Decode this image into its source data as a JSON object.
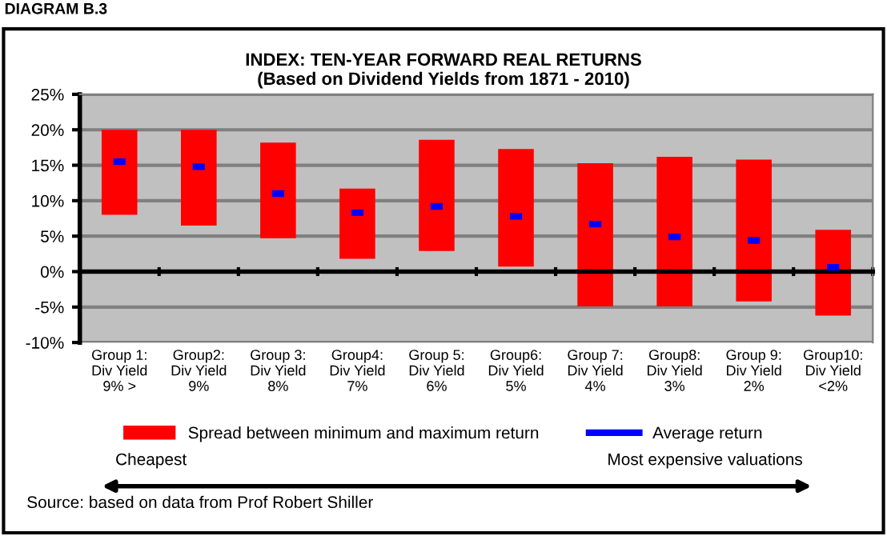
{
  "chart_data": {
    "type": "bar",
    "title": "INDEX: TEN-YEAR FORWARD REAL RETURNS\n(Based on Dividend Yields from 1871 - 2010)",
    "categories": [
      "Group 1:\nDiv Yield\n9% >",
      "Group2:\nDiv Yield\n9%",
      "Group 3:\nDiv Yield\n8%",
      "Group4:\nDiv Yield\n7%",
      "Group 5:\nDiv Yield\n6%",
      "Group6:\nDiv Yield\n5%",
      "Group 7:\nDiv Yield\n4%",
      "Group8:\nDiv Yield\n3%",
      "Group 9:\nDiv Yield\n2%",
      "Group10:\nDiv Yield\n<2%"
    ],
    "series": [
      {
        "name": "Spread between minimum and maximum return",
        "color": "#ff0000",
        "base": [
          8,
          6.5,
          4.7,
          1.8,
          2.9,
          0.7,
          -4.9,
          -4.9,
          -4.2,
          -6.2
        ],
        "values": [
          12,
          13.5,
          13.5,
          9.9,
          15.7,
          16.6,
          20.2,
          21.1,
          20,
          12.1
        ]
      },
      {
        "name": "Average return",
        "type": "scatter",
        "color": "#0000ff",
        "values": [
          15.5,
          14.8,
          11,
          8.3,
          9.2,
          7.8,
          6.7,
          4.9,
          4.4,
          0.6
        ]
      }
    ],
    "ylim": [
      -10,
      25
    ],
    "yticks": [
      {
        "value": -10,
        "label": "-10%"
      },
      {
        "value": -5,
        "label": "-5%"
      },
      {
        "value": 0,
        "label": "0%"
      },
      {
        "value": 5,
        "label": "5%"
      },
      {
        "value": 10,
        "label": "10%"
      },
      {
        "value": 15,
        "label": "15%"
      },
      {
        "value": 20,
        "label": "20%"
      },
      {
        "value": 25,
        "label": "25%"
      }
    ],
    "grid": "y",
    "legend": "bottom",
    "annotations": [
      "DIAGRAM B.3",
      "Cheapest",
      "Most expensive valuations",
      "Source: based on data from Prof Robert Shiller"
    ]
  }
}
